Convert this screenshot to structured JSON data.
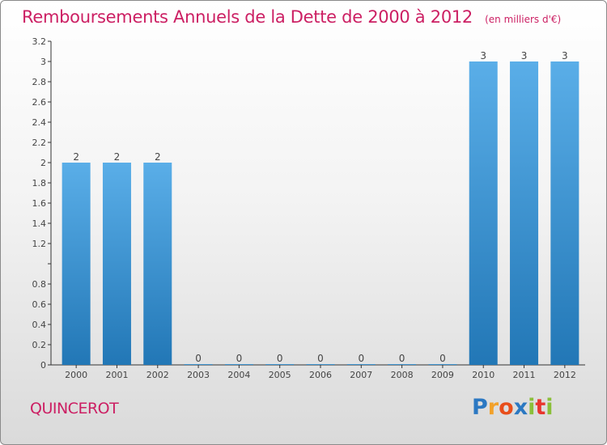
{
  "chart_data": {
    "type": "bar",
    "title": "Remboursements Annuels de la Dette de 2000 à 2012",
    "unit_note": "(en milliers d'€)",
    "categories": [
      "2000",
      "2001",
      "2002",
      "2003",
      "2004",
      "2005",
      "2006",
      "2007",
      "2008",
      "2009",
      "2010",
      "2011",
      "2012"
    ],
    "values": [
      2,
      2,
      2,
      0,
      0,
      0,
      0,
      0,
      0,
      0,
      3,
      3,
      3
    ],
    "value_labels": [
      "2",
      "2",
      "2",
      "0",
      "0",
      "0",
      "0",
      "0",
      "0",
      "0",
      "3",
      "3",
      "3"
    ],
    "ylim": [
      0,
      3.2
    ],
    "y_ticks": [
      0,
      0.2,
      0.4,
      0.6,
      0.8,
      1,
      1.2,
      1.4,
      1.6,
      1.8,
      2,
      2.2,
      2.4,
      2.6,
      2.8,
      3,
      3.2
    ],
    "y_tick_labels": [
      "0",
      "0.2",
      "0.4",
      "0.6",
      "0.8",
      "",
      "1.2",
      "1.4",
      "1.6",
      "1.8",
      "2",
      "2.2",
      "2.4",
      "2.6",
      "2.8",
      "3",
      "3.2"
    ],
    "xlabel": "",
    "ylabel": "",
    "grid": false,
    "colors": {
      "bar_top": "#5aaee8",
      "bar_bottom": "#2277b6",
      "axis": "#333333",
      "title": "#cc1f63"
    }
  },
  "footer": {
    "commune": "QUINCEROT"
  },
  "logo": {
    "letters": [
      "P",
      "r",
      "o",
      "x",
      "i",
      "t",
      "i"
    ],
    "colors": [
      "#2b78c2",
      "#f2a12a",
      "#e84e1b",
      "#2b78c2",
      "#8bbf3a",
      "#e8352e",
      "#8bbf3a"
    ]
  }
}
